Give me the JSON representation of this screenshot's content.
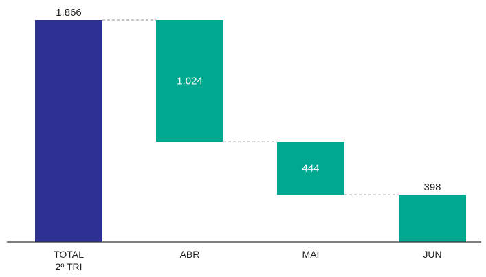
{
  "chart_data": {
    "type": "bar",
    "subtype": "waterfall",
    "title": "",
    "xlabel": "",
    "ylabel": "",
    "ylim": [
      0,
      1866
    ],
    "grid": false,
    "legend": "none",
    "categories": [
      {
        "lines": [
          "TOTAL",
          "2º TRI"
        ]
      },
      {
        "lines": [
          "ABR"
        ]
      },
      {
        "lines": [
          "MAI"
        ]
      },
      {
        "lines": [
          "JUN"
        ]
      }
    ],
    "bars": [
      {
        "role": "total",
        "value": 1866,
        "label": "1.866",
        "base": 0,
        "top": 1866
      },
      {
        "role": "component",
        "value": 1024,
        "label": "1.024",
        "base": 842,
        "top": 1866
      },
      {
        "role": "component",
        "value": 444,
        "label": "444",
        "base": 398,
        "top": 842
      },
      {
        "role": "component",
        "value": 398,
        "label": "398",
        "base": 0,
        "top": 398
      }
    ],
    "colors": {
      "total": "#2e3192",
      "component": "#00a88f",
      "connector": "#8c8c8c",
      "axis": "#333333"
    }
  }
}
